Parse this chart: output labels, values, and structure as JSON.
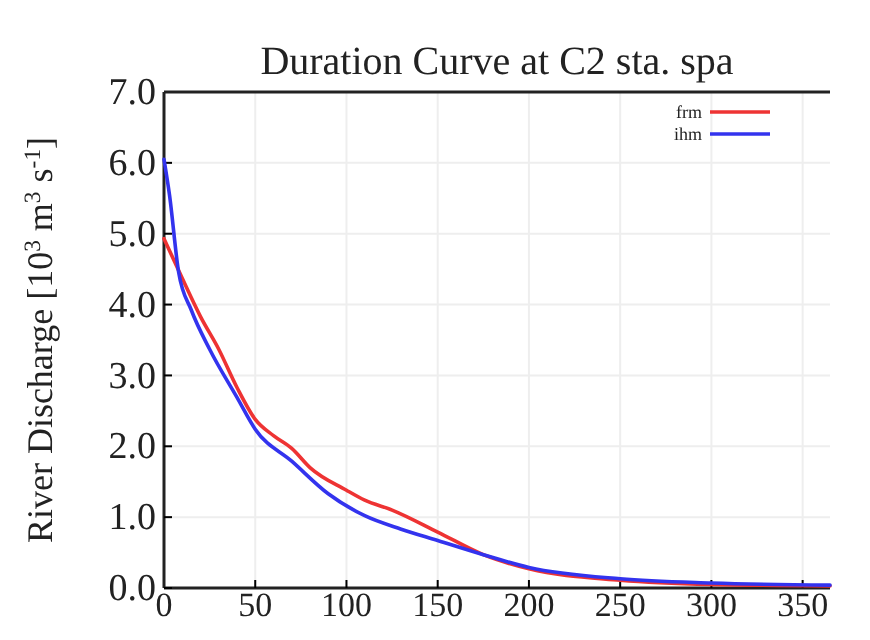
{
  "chart_data": {
    "type": "line",
    "title": "Duration Curve at C2 sta. spa",
    "ylabel": "River Discharge [10$^{3}$ m$^{3}$ s$^{-1}$]",
    "xlim": [
      0,
      365
    ],
    "xticks": [
      0,
      50,
      100,
      150,
      200,
      250,
      300,
      350
    ],
    "ylim": [
      0,
      7
    ],
    "yticks": [
      {
        "value": 0,
        "label": "0.0"
      },
      {
        "value": 1,
        "label": "1.0"
      },
      {
        "value": 2,
        "label": "2.0"
      },
      {
        "value": 3,
        "label": "3.0"
      },
      {
        "value": 4,
        "label": "4.0"
      },
      {
        "value": 5,
        "label": "5.0"
      },
      {
        "value": 6,
        "label": "6.0"
      },
      {
        "value": 7,
        "label": "7.0"
      }
    ],
    "grid": true,
    "legend": "top right",
    "series": [
      {
        "name": "frm",
        "color": "#ee3333",
        "x": [
          0,
          10,
          20,
          30,
          40,
          50,
          60,
          70,
          80,
          100,
          110,
          125,
          150,
          175,
          200,
          250,
          300,
          365
        ],
        "values": [
          4.93,
          4.37,
          3.83,
          3.37,
          2.83,
          2.38,
          2.15,
          1.97,
          1.7,
          1.38,
          1.24,
          1.1,
          0.79,
          0.47,
          0.27,
          0.11,
          0.05,
          0.03
        ]
      },
      {
        "name": "ihm",
        "color": "#3333ee",
        "x": [
          0,
          3,
          8,
          15,
          25,
          40,
          50,
          70,
          90,
          110,
          130,
          150,
          175,
          200,
          250,
          300,
          365
        ],
        "values": [
          6.05,
          5.55,
          4.46,
          3.92,
          3.37,
          2.69,
          2.24,
          1.79,
          1.33,
          1.02,
          0.83,
          0.67,
          0.47,
          0.29,
          0.13,
          0.07,
          0.04
        ]
      }
    ]
  }
}
